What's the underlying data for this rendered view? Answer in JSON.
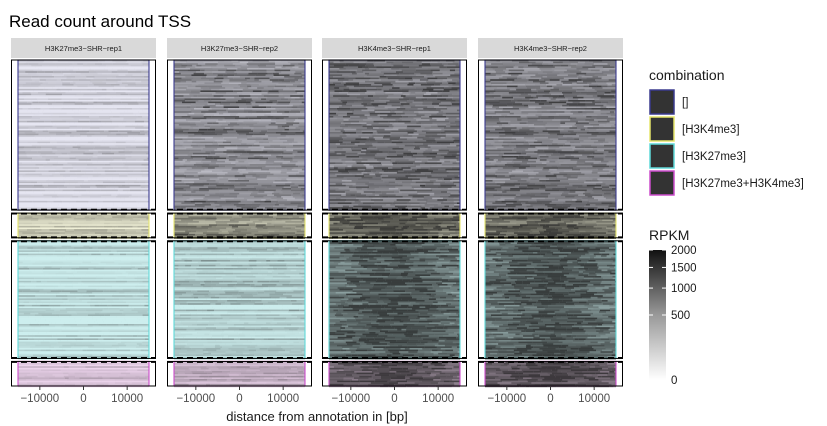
{
  "chart_data": {
    "type": "heatmap",
    "title": "Read count around TSS",
    "xlabel": "distance from annotation in [bp]",
    "ylabel": "",
    "xlim": [
      -15000,
      15000
    ],
    "x_ticks": [
      -10000,
      0,
      10000
    ],
    "x_tick_labels": [
      "-10000",
      "0",
      "10000"
    ],
    "panels": [
      "H3K27me3−SHR−rep1",
      "H3K27me3−SHR−rep2",
      "H3K4me3−SHR−rep1",
      "H3K4me3−SHR−rep2"
    ],
    "groups": [
      {
        "name": "[]",
        "fraction": 0.465,
        "color": "#3b3b8f",
        "tint": "#e6e6f2"
      },
      {
        "name": "[H3K4me3]",
        "fraction": 0.085,
        "color": "#e5e56b",
        "tint": "#efefd6"
      },
      {
        "name": "[H3K27me3]",
        "fraction": 0.37,
        "color": "#5fd9d9",
        "tint": "#cdeeee"
      },
      {
        "name": "[H3K27me3+H3K4me3]",
        "fraction": 0.08,
        "color": "#cc4dcc",
        "tint": "#ecd4ec"
      }
    ],
    "signal_level": [
      [
        0.18,
        0.72,
        0.92,
        0.88
      ],
      [
        0.18,
        0.72,
        0.92,
        0.88
      ],
      [
        0.16,
        0.28,
        0.95,
        0.98
      ],
      [
        0.15,
        0.28,
        0.93,
        0.97
      ]
    ],
    "legend_groups_title": "combination",
    "legend_colorbar": {
      "title": "RPKM",
      "scale": "sqrt",
      "range": [
        0,
        2000
      ],
      "tick_values": [
        0,
        500,
        1000,
        1500,
        2000
      ],
      "tick_labels": [
        "0",
        "500",
        "1000",
        "1500",
        "2000"
      ]
    }
  }
}
